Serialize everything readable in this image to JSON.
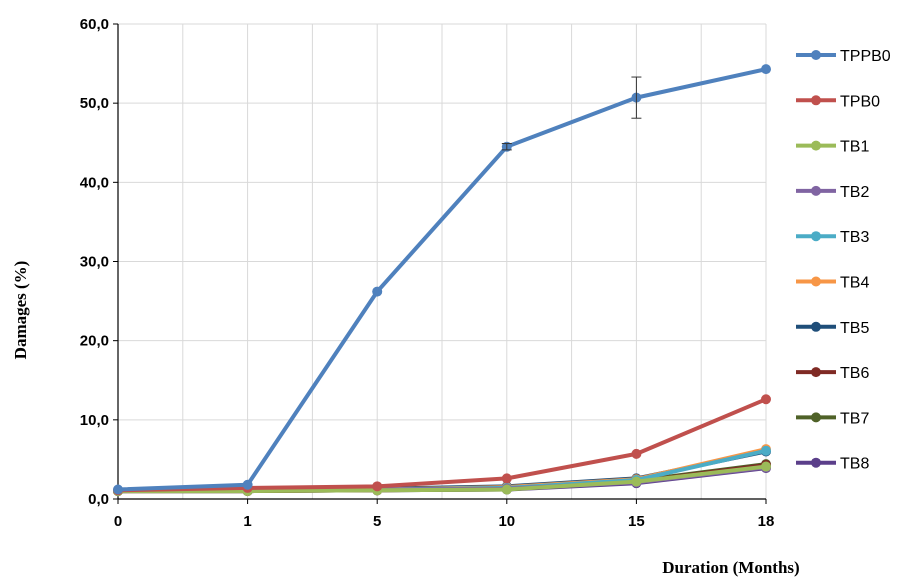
{
  "chart_data": {
    "type": "line",
    "xlabel": "Duration (Months)",
    "ylabel": "Damages  (%)",
    "categories": [
      "0",
      "1",
      "5",
      "10",
      "15",
      "18"
    ],
    "ylim": [
      0,
      60
    ],
    "yticks": [
      "0,0",
      "10,0",
      "20,0",
      "30,0",
      "40,0",
      "50,0",
      "60,0"
    ],
    "grid": true,
    "legend_position": "right",
    "series": [
      {
        "name": "TPPB0",
        "color": "#4f81bd",
        "values": [
          1.2,
          1.8,
          26.2,
          44.5,
          50.7,
          54.3
        ],
        "error": [
          0,
          0,
          0,
          0.4,
          2.6,
          0
        ]
      },
      {
        "name": "TPB0",
        "color": "#c0504d",
        "values": [
          1.1,
          1.4,
          1.6,
          2.6,
          5.7,
          12.6
        ]
      },
      {
        "name": "TB1",
        "color": "#9bbb59",
        "values": [
          1.0,
          1.0,
          1.1,
          1.2,
          2.2,
          4.1
        ]
      },
      {
        "name": "TB2",
        "color": "#8064a2",
        "values": [
          1.0,
          1.1,
          1.2,
          1.3,
          2.1,
          4.0
        ]
      },
      {
        "name": "TB3",
        "color": "#4bacc6",
        "values": [
          1.0,
          1.1,
          1.2,
          1.4,
          2.4,
          6.1
        ]
      },
      {
        "name": "TB4",
        "color": "#f79646",
        "values": [
          1.0,
          1.1,
          1.2,
          1.5,
          2.5,
          6.3
        ]
      },
      {
        "name": "TB5",
        "color": "#1f4e79",
        "values": [
          1.0,
          1.1,
          1.3,
          1.6,
          2.6,
          6.0
        ]
      },
      {
        "name": "TB6",
        "color": "#7f2a24",
        "values": [
          1.0,
          1.0,
          1.1,
          1.3,
          2.2,
          4.3
        ]
      },
      {
        "name": "TB7",
        "color": "#4f6228",
        "values": [
          1.0,
          1.0,
          1.1,
          1.2,
          2.3,
          4.4
        ]
      },
      {
        "name": "TB8",
        "color": "#5b3f8a",
        "values": [
          1.0,
          1.0,
          1.1,
          1.2,
          2.0,
          3.9
        ]
      }
    ]
  }
}
